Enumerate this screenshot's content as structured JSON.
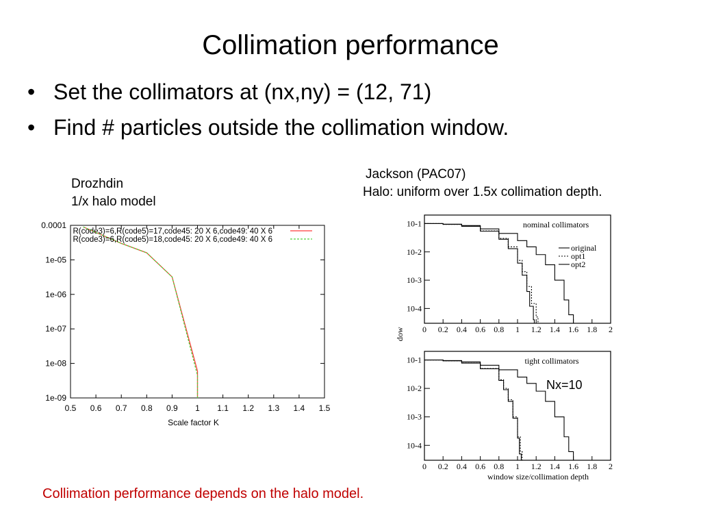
{
  "slide": {
    "title": "Collimation performance",
    "bullets": [
      "Set the collimators at (nx,ny) = (12, 71)",
      "Find # particles outside the collimation window."
    ],
    "left_caption": [
      "Drozhdin",
      "1/x halo model"
    ],
    "right_caption": [
      "Jackson  (PAC07)",
      "Halo: uniform over 1.5x collimation depth."
    ],
    "note": "Nx=10",
    "footer": "Collimation performance depends on the halo model."
  },
  "colors": {
    "footer": "#c00000",
    "series_red": "#ff3b3b",
    "series_green": "#4fd23a"
  },
  "chart_data": [
    {
      "type": "line",
      "xlabel": "Scale factor K",
      "ylabel": "",
      "xlim": [
        0.5,
        1.5
      ],
      "ylim": [
        1e-09,
        0.0001
      ],
      "yscale": "log",
      "x_ticks": [
        "0.5",
        "0.6",
        "0.7",
        "0.8",
        "0.9",
        "1",
        "1.1",
        "1.2",
        "1.3",
        "1.4",
        "1.5"
      ],
      "y_ticks": [
        "0.0001",
        "1e-05",
        "1e-06",
        "1e-07",
        "1e-08",
        "1e-09"
      ],
      "legend_position": "top-right",
      "series": [
        {
          "name": "R(code3)=6,R(code5)=17,code45: 20 X 6,code49: 40 X 6",
          "x": [
            0.55,
            0.7,
            0.8,
            0.9,
            1.0,
            1.0
          ],
          "y": [
            9e-05,
            3e-05,
            1.6e-05,
            3.2e-06,
            6e-09,
            1e-09
          ]
        },
        {
          "name": "R(code3)=6,R(code5)=18,code45: 20 X 6,code49: 40 X 6",
          "x": [
            0.55,
            0.7,
            0.8,
            0.9,
            1.0,
            1.0
          ],
          "y": [
            9e-05,
            3e-05,
            1.6e-05,
            3.2e-06,
            4.5e-09,
            1e-09
          ]
        }
      ]
    },
    {
      "type": "line",
      "title": "nominal collimators",
      "xlabel": "",
      "ylabel": "# particles outside window",
      "xlim": [
        0,
        2
      ],
      "ylim": [
        3e-05,
        0.2
      ],
      "yscale": "log",
      "x_ticks": [
        "0",
        "0.2",
        "0.4",
        "0.6",
        "0.8",
        "1",
        "1.2",
        "1.4",
        "1.6",
        "1.8",
        "2"
      ],
      "y_ticks": [
        "10-1",
        "10-2",
        "10-3",
        "10-4"
      ],
      "legend_position": "right",
      "series": [
        {
          "name": "original",
          "x": [
            0,
            0.2,
            0.4,
            0.6,
            0.8,
            1.0,
            1.1,
            1.2,
            1.3,
            1.4,
            1.5,
            1.55,
            1.6
          ],
          "y": [
            0.1,
            0.095,
            0.085,
            0.065,
            0.045,
            0.025,
            0.015,
            0.008,
            0.0035,
            0.001,
            0.0002,
            6e-05,
            3e-05
          ]
        },
        {
          "name": "opt1",
          "x": [
            0,
            0.2,
            0.4,
            0.6,
            0.8,
            0.9,
            1.0,
            1.05,
            1.1,
            1.15,
            1.2,
            1.22
          ],
          "y": [
            0.1,
            0.094,
            0.08,
            0.055,
            0.03,
            0.015,
            0.005,
            0.002,
            0.0006,
            0.00015,
            5e-05,
            3e-05
          ]
        },
        {
          "name": "opt2",
          "x": [
            0,
            0.2,
            0.4,
            0.6,
            0.8,
            0.9,
            1.0,
            1.05,
            1.1,
            1.13,
            1.17,
            1.18
          ],
          "y": [
            0.1,
            0.094,
            0.08,
            0.054,
            0.028,
            0.013,
            0.004,
            0.0015,
            0.0004,
            0.00012,
            4e-05,
            3e-05
          ]
        }
      ]
    },
    {
      "type": "line",
      "title": "tight collimators",
      "xlabel": "window size/collimation depth",
      "ylabel": "",
      "xlim": [
        0,
        2
      ],
      "ylim": [
        3e-05,
        0.2
      ],
      "yscale": "log",
      "x_ticks": [
        "0",
        "0.2",
        "0.4",
        "0.6",
        "0.8",
        "1",
        "1.2",
        "1.4",
        "1.6",
        "1.8",
        "2"
      ],
      "y_ticks": [
        "10-1",
        "10-2",
        "10-3",
        "10-4"
      ],
      "series": [
        {
          "x": [
            0,
            0.2,
            0.4,
            0.6,
            0.8,
            1.0,
            1.1,
            1.2,
            1.3,
            1.4,
            1.5,
            1.55,
            1.6
          ],
          "y": [
            0.1,
            0.095,
            0.085,
            0.065,
            0.045,
            0.025,
            0.015,
            0.008,
            0.0035,
            0.001,
            0.0002,
            6e-05,
            3e-05
          ]
        },
        {
          "x": [
            0,
            0.2,
            0.4,
            0.6,
            0.8,
            0.85,
            0.9,
            0.95,
            1.0,
            1.03,
            1.05
          ],
          "y": [
            0.1,
            0.093,
            0.078,
            0.05,
            0.02,
            0.01,
            0.004,
            0.001,
            0.0002,
            6e-05,
            3e-05
          ]
        },
        {
          "x": [
            0,
            0.2,
            0.4,
            0.6,
            0.8,
            0.85,
            0.9,
            0.95,
            1.0,
            1.02,
            1.04
          ],
          "y": [
            0.1,
            0.093,
            0.077,
            0.049,
            0.019,
            0.009,
            0.0035,
            0.0009,
            0.00018,
            5e-05,
            3e-05
          ]
        }
      ]
    }
  ]
}
